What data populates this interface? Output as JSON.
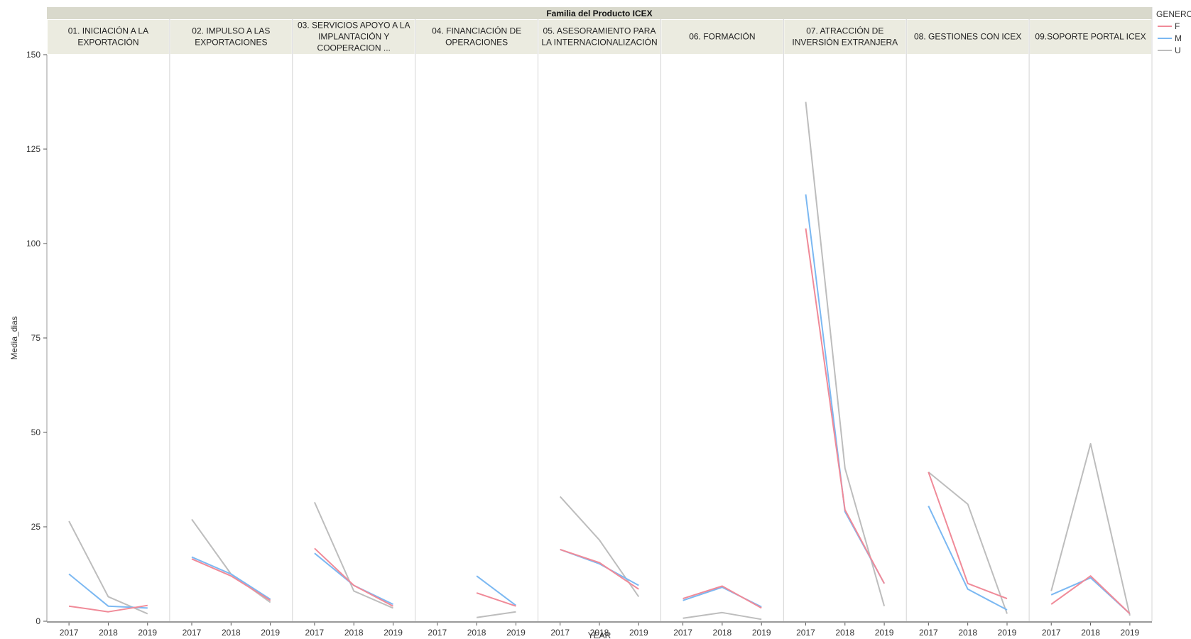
{
  "chart_data": {
    "type": "line",
    "facet_title": "Familia del Producto ICEX",
    "xlabel": "YEAR",
    "ylabel": "Media_dias",
    "ylim": [
      0,
      150
    ],
    "yticks": [
      0,
      25,
      50,
      75,
      100,
      125,
      150
    ],
    "x": [
      "2017",
      "2018",
      "2019"
    ],
    "legend": {
      "title": "GENERO",
      "position": "top-right",
      "entries": [
        {
          "key": "F",
          "color": "#f08a98"
        },
        {
          "key": "M",
          "color": "#7bb8f2"
        },
        {
          "key": "U",
          "color": "#bdbdbd"
        }
      ]
    },
    "panels": [
      {
        "title_lines": [
          "01. INICIACIÓN A LA",
          "EXPORTACIÓN"
        ],
        "series": {
          "F": [
            4,
            2.5,
            4.2
          ],
          "M": [
            12.5,
            4,
            3.5
          ],
          "U": [
            26.5,
            6.5,
            2
          ]
        }
      },
      {
        "title_lines": [
          "02. IMPULSO A LAS",
          "EXPORTACIONES"
        ],
        "series": {
          "F": [
            16.5,
            12,
            5.5
          ],
          "M": [
            17,
            12.5,
            5.8
          ],
          "U": [
            27,
            12.5,
            5
          ]
        }
      },
      {
        "title_lines": [
          "03. SERVICIOS APOYO A LA",
          "IMPLANTACIÓN Y",
          "COOPERACION ..."
        ],
        "series": {
          "F": [
            19.3,
            9.5,
            4
          ],
          "M": [
            18,
            9.5,
            4.5
          ],
          "U": [
            31.5,
            8,
            3.5
          ]
        }
      },
      {
        "title_lines": [
          "04. FINANCIACIÓN DE",
          "OPERACIONES"
        ],
        "series": {
          "F": [
            null,
            7.5,
            4
          ],
          "M": [
            null,
            12,
            4.2
          ],
          "U": [
            null,
            1,
            2.5
          ]
        }
      },
      {
        "title_lines": [
          "05. ASESORAMIENTO PARA",
          "LA INTERNACIONALIZACIÓN"
        ],
        "series": {
          "F": [
            19,
            15.5,
            8.5
          ],
          "M": [
            19,
            15.2,
            9.5
          ],
          "U": [
            33,
            21.5,
            6.5
          ]
        }
      },
      {
        "title_lines": [
          "06. FORMACIÓN"
        ],
        "series": {
          "F": [
            6,
            9.3,
            3.5
          ],
          "M": [
            5.5,
            9,
            3.8
          ],
          "U": [
            0.8,
            2.3,
            0.5
          ]
        }
      },
      {
        "title_lines": [
          "07. ATRACCIÓN DE",
          "INVERSIÓN EXTRANJERA"
        ],
        "series": {
          "F": [
            104,
            29.5,
            10
          ],
          "M": [
            113,
            29,
            10
          ],
          "U": [
            137.5,
            40.5,
            4
          ]
        }
      },
      {
        "title_lines": [
          "08. GESTIONES CON ICEX"
        ],
        "series": {
          "F": [
            39.5,
            10,
            6
          ],
          "M": [
            30.5,
            8.5,
            3
          ],
          "U": [
            39.5,
            31,
            2
          ]
        }
      },
      {
        "title_lines": [
          "09.SOPORTE PORTAL ICEX"
        ],
        "series": {
          "F": [
            4.5,
            12,
            2
          ],
          "M": [
            7,
            11.5,
            2
          ],
          "U": [
            8,
            47,
            1.5
          ]
        }
      }
    ]
  }
}
